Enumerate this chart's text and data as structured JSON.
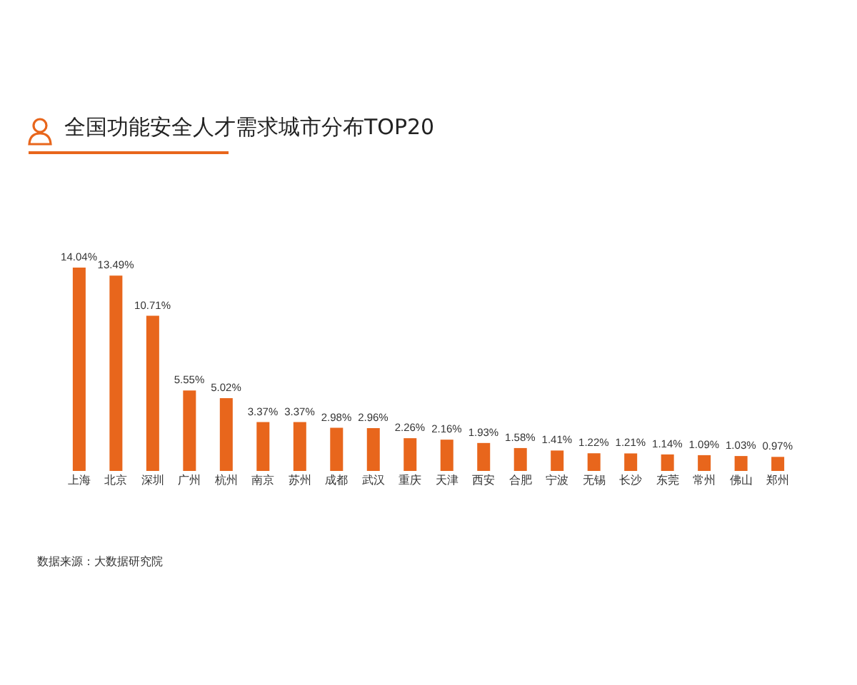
{
  "chart_data": {
    "type": "bar",
    "title": "全国功能安全人才需求城市分布TOP20",
    "categories": [
      "上海",
      "北京",
      "深圳",
      "广州",
      "杭州",
      "南京",
      "苏州",
      "成都",
      "武汉",
      "重庆",
      "天津",
      "西安",
      "合肥",
      "宁波",
      "无锡",
      "长沙",
      "东莞",
      "常州",
      "佛山",
      "郑州"
    ],
    "values": [
      14.04,
      13.49,
      10.71,
      5.55,
      5.02,
      3.37,
      3.37,
      2.98,
      2.96,
      2.26,
      2.16,
      1.93,
      1.58,
      1.41,
      1.22,
      1.21,
      1.14,
      1.09,
      1.03,
      0.97
    ],
    "value_labels": [
      "14.04%",
      "13.49%",
      "10.71%",
      "5.55%",
      "5.02%",
      "3.37%",
      "3.37%",
      "2.98%",
      "2.96%",
      "2.26%",
      "2.16%",
      "1.93%",
      "1.58%",
      "1.41%",
      "1.22%",
      "1.21%",
      "1.14%",
      "1.09%",
      "1.03%",
      "0.97%"
    ],
    "color": "#e8661c",
    "annotations": [
      "数据来源：大数据研究院"
    ],
    "grid": false,
    "legend": false
  }
}
